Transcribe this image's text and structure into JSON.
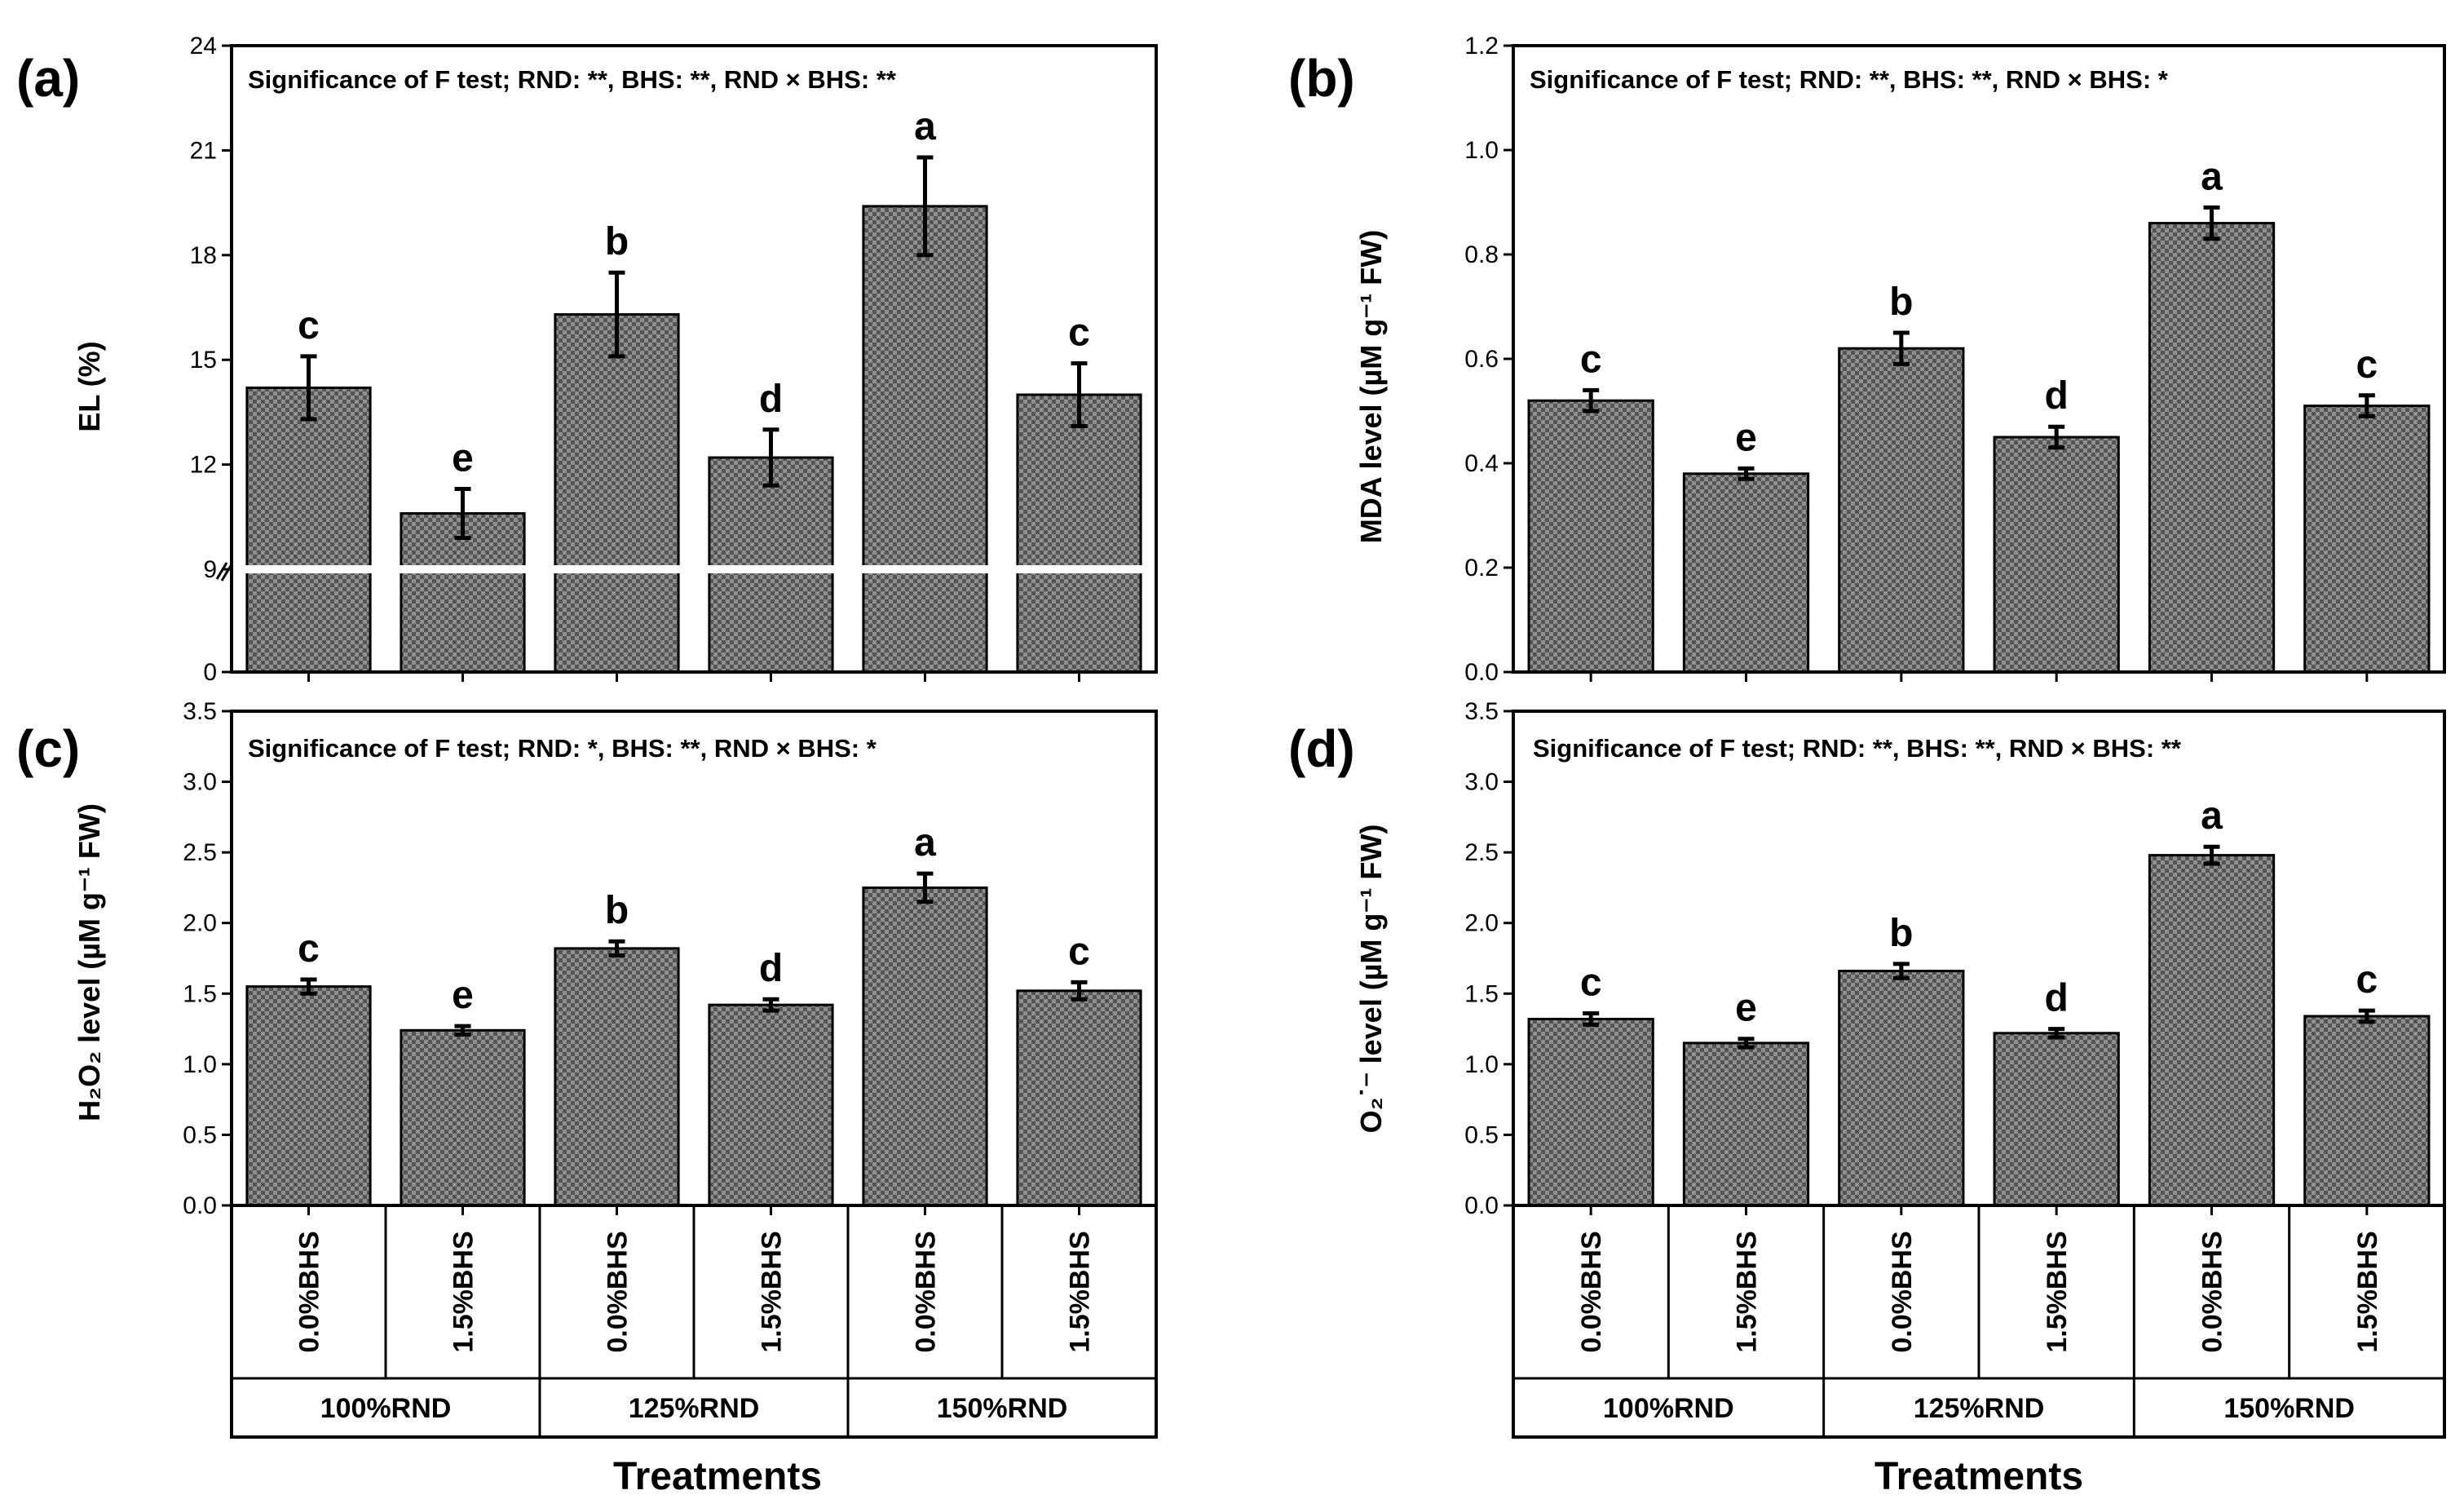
{
  "figure": {
    "x_axis_title": "Treatments",
    "category_labels": [
      "0.0%BHS",
      "1.5%BHS",
      "0.0%BHS",
      "1.5%BHS",
      "0.0%BHS",
      "1.5%BHS"
    ],
    "group_labels": [
      "100%RND",
      "125%RND",
      "150%RND"
    ]
  },
  "colors": {
    "bar_fill": "#8f8f8f",
    "bar_pattern_dark": "#555555",
    "axis": "#000000",
    "axis_break": "#ffffff"
  },
  "chart_data": [
    {
      "panel": "(a)",
      "type": "bar",
      "annotation": "Significance of F test; RND: **, BHS: **, RND × BHS: **",
      "ylabel": "EL (%)",
      "categories": [
        "0.0%BHS",
        "1.5%BHS",
        "0.0%BHS",
        "1.5%BHS",
        "0.0%BHS",
        "1.5%BHS"
      ],
      "groups": [
        "100%RND",
        "125%RND",
        "150%RND"
      ],
      "values": [
        14.2,
        10.6,
        16.3,
        12.2,
        19.4,
        14.0
      ],
      "errors": [
        0.9,
        0.7,
        1.2,
        0.8,
        1.4,
        0.9
      ],
      "significance_letters": [
        "c",
        "e",
        "b",
        "d",
        "a",
        "c"
      ],
      "ylim": [
        0,
        24
      ],
      "axis_break": [
        0,
        9
      ],
      "yticks": [
        0,
        9,
        12,
        15,
        18,
        21,
        24
      ],
      "ytick_labels": [
        "0",
        "9",
        "12",
        "15",
        "18",
        "21",
        "24"
      ]
    },
    {
      "panel": "(b)",
      "type": "bar",
      "annotation": "Significance of F test; RND: **, BHS: **, RND × BHS: *",
      "ylabel": "MDA level (µM g⁻¹ FW)",
      "categories": [
        "0.0%BHS",
        "1.5%BHS",
        "0.0%BHS",
        "1.5%BHS",
        "0.0%BHS",
        "1.5%BHS"
      ],
      "groups": [
        "100%RND",
        "125%RND",
        "150%RND"
      ],
      "values": [
        0.52,
        0.38,
        0.62,
        0.45,
        0.86,
        0.51
      ],
      "errors": [
        0.02,
        0.01,
        0.03,
        0.02,
        0.03,
        0.02
      ],
      "significance_letters": [
        "c",
        "e",
        "b",
        "d",
        "a",
        "c"
      ],
      "ylim": [
        0,
        1.2
      ],
      "yticks": [
        0,
        0.2,
        0.4,
        0.6,
        0.8,
        1.0,
        1.2
      ],
      "ytick_labels": [
        "0.0",
        "0.2",
        "0.4",
        "0.6",
        "0.8",
        "1.0",
        "1.2"
      ]
    },
    {
      "panel": "(c)",
      "type": "bar",
      "annotation": "Significance of F test; RND: *, BHS: **, RND × BHS: *",
      "ylabel": "H₂O₂ level (µM g⁻¹ FW)",
      "categories": [
        "0.0%BHS",
        "1.5%BHS",
        "0.0%BHS",
        "1.5%BHS",
        "0.0%BHS",
        "1.5%BHS"
      ],
      "groups": [
        "100%RND",
        "125%RND",
        "150%RND"
      ],
      "values": [
        1.55,
        1.24,
        1.82,
        1.42,
        2.25,
        1.52
      ],
      "errors": [
        0.05,
        0.03,
        0.05,
        0.04,
        0.1,
        0.06
      ],
      "significance_letters": [
        "c",
        "e",
        "b",
        "d",
        "a",
        "c"
      ],
      "ylim": [
        0,
        3.5
      ],
      "yticks": [
        0,
        0.5,
        1.0,
        1.5,
        2.0,
        2.5,
        3.0,
        3.5
      ],
      "ytick_labels": [
        "0.0",
        "0.5",
        "1.0",
        "1.5",
        "2.0",
        "2.5",
        "3.0",
        "3.5"
      ]
    },
    {
      "panel": "(d)",
      "type": "bar",
      "annotation": "Significance of F test; RND: **, BHS: **, RND × BHS: **",
      "ylabel": "O₂˙⁻ level (µM g⁻¹ FW)",
      "categories": [
        "0.0%BHS",
        "1.5%BHS",
        "0.0%BHS",
        "1.5%BHS",
        "0.0%BHS",
        "1.5%BHS"
      ],
      "groups": [
        "100%RND",
        "125%RND",
        "150%RND"
      ],
      "values": [
        1.32,
        1.15,
        1.66,
        1.22,
        2.48,
        1.34
      ],
      "errors": [
        0.04,
        0.03,
        0.05,
        0.03,
        0.06,
        0.04
      ],
      "significance_letters": [
        "c",
        "e",
        "b",
        "d",
        "a",
        "c"
      ],
      "ylim": [
        0,
        3.5
      ],
      "yticks": [
        0,
        0.5,
        1.0,
        1.5,
        2.0,
        2.5,
        3.0,
        3.5
      ],
      "ytick_labels": [
        "0.0",
        "0.5",
        "1.0",
        "1.5",
        "2.0",
        "2.5",
        "3.0",
        "3.5"
      ]
    }
  ]
}
